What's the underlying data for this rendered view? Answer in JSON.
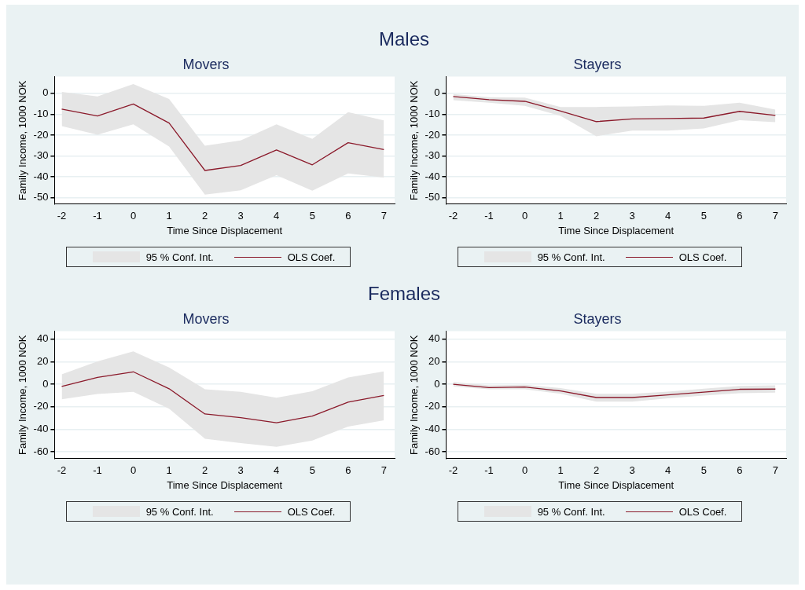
{
  "chart_data": [
    {
      "type": "line",
      "title": "Males",
      "subtitle": "Movers",
      "xlabel": "Time Since Displacement",
      "ylabel": "Family Income, 1000 NOK",
      "x": [
        -2,
        -1,
        0,
        1,
        2,
        3,
        4,
        5,
        6,
        7
      ],
      "xlim": [
        -2.2,
        7.3
      ],
      "xticks": [
        -2,
        -1,
        0,
        1,
        2,
        3,
        4,
        5,
        6,
        7
      ],
      "ylim": [
        -53,
        8
      ],
      "yticks": [
        -50,
        -40,
        -30,
        -20,
        -10,
        0
      ],
      "grid": "y",
      "legend": "bottom",
      "annotations": [
        "95 % Conf. Int."
      ],
      "series": [
        {
          "name": "OLS Coef.",
          "color": "#8b1a2b",
          "values": [
            -7.5,
            -10.8,
            -5.1,
            -14.2,
            -36.9,
            -34.5,
            -27.1,
            -34.2,
            -23.6,
            -26.9
          ],
          "upper": [
            0.7,
            -1.5,
            4.5,
            -2.7,
            -25.1,
            -22.5,
            -14.8,
            -21.8,
            -9,
            -12.9
          ],
          "lower": [
            -15.7,
            -19.8,
            -14.8,
            -25.4,
            -48.5,
            -46.4,
            -39.2,
            -46.6,
            -38.3,
            -40.3
          ]
        }
      ]
    },
    {
      "type": "line",
      "subtitle": "Stayers",
      "xlabel": "Time Since Displacement",
      "ylabel": "Family Income, 1000 NOK",
      "x": [
        -2,
        -1,
        0,
        1,
        2,
        3,
        4,
        5,
        6,
        7
      ],
      "xlim": [
        -2.2,
        7.3
      ],
      "xticks": [
        -2,
        -1,
        0,
        1,
        2,
        3,
        4,
        5,
        6,
        7
      ],
      "ylim": [
        -53,
        8
      ],
      "yticks": [
        -50,
        -40,
        -30,
        -20,
        -10,
        0
      ],
      "grid": "y",
      "legend": "bottom",
      "annotations": [
        "95 % Conf. Int."
      ],
      "series": [
        {
          "name": "OLS Coef.",
          "color": "#8b1a2b",
          "values": [
            -1.5,
            -3,
            -3.8,
            -8.5,
            -13.5,
            -12.2,
            -12,
            -11.8,
            -8.6,
            -10.5
          ],
          "upper": [
            -0.3,
            -1.8,
            -2,
            -6.5,
            -6.5,
            -6.3,
            -5.8,
            -6,
            -4.5,
            -7.8
          ],
          "lower": [
            -3.2,
            -4.5,
            -6,
            -10.8,
            -20.5,
            -17.8,
            -17.8,
            -16.8,
            -12.8,
            -13.8
          ]
        }
      ]
    },
    {
      "type": "line",
      "title": "Females",
      "subtitle": "Movers",
      "xlabel": "Time Since Displacement",
      "ylabel": "Family Income, 1000 NOK",
      "x": [
        -2,
        -1,
        0,
        1,
        2,
        3,
        4,
        5,
        6,
        7
      ],
      "xlim": [
        -2.2,
        7.3
      ],
      "xticks": [
        -2,
        -1,
        0,
        1,
        2,
        3,
        4,
        5,
        6,
        7
      ],
      "ylim": [
        -66,
        47
      ],
      "yticks": [
        -60,
        -40,
        -20,
        0,
        20,
        40
      ],
      "grid": "y",
      "legend": "bottom",
      "annotations": [
        "95 % Conf. Int."
      ],
      "series": [
        {
          "name": "OLS Coef.",
          "color": "#8b1a2b",
          "values": [
            -2,
            6,
            11,
            -4,
            -26.4,
            -29.7,
            -34.2,
            -28.3,
            -15.9,
            -9.9
          ],
          "upper": [
            8.7,
            20.2,
            29.2,
            14.9,
            -4.4,
            -6.7,
            -12,
            -6.2,
            6,
            11.3
          ],
          "lower": [
            -13.3,
            -8.7,
            -6.7,
            -21.8,
            -48.3,
            -52.2,
            -55.6,
            -49.9,
            -37.5,
            -32
          ]
        }
      ]
    },
    {
      "type": "line",
      "subtitle": "Stayers",
      "xlabel": "Time Since Displacement",
      "ylabel": "Family Income, 1000 NOK",
      "x": [
        -2,
        -1,
        0,
        1,
        2,
        3,
        4,
        5,
        6,
        7
      ],
      "xlim": [
        -2.2,
        7.3
      ],
      "xticks": [
        -2,
        -1,
        0,
        1,
        2,
        3,
        4,
        5,
        6,
        7
      ],
      "ylim": [
        -66,
        47
      ],
      "yticks": [
        -60,
        -40,
        -20,
        0,
        20,
        40
      ],
      "grid": "y",
      "legend": "bottom",
      "annotations": [
        "95 % Conf. Int."
      ],
      "series": [
        {
          "name": "OLS Coef.",
          "color": "#8b1a2b",
          "values": [
            0,
            -3,
            -2.5,
            -6,
            -11.8,
            -11.8,
            -9.5,
            -7,
            -4.5,
            -4.3
          ],
          "upper": [
            2,
            -1,
            -0.5,
            -3.5,
            -8.5,
            -8.5,
            -6.5,
            -4,
            -1.5,
            -1
          ],
          "lower": [
            -2,
            -4.5,
            -4.5,
            -8.5,
            -15.5,
            -15.5,
            -12.5,
            -10,
            -8,
            -7.5
          ]
        }
      ]
    }
  ]
}
